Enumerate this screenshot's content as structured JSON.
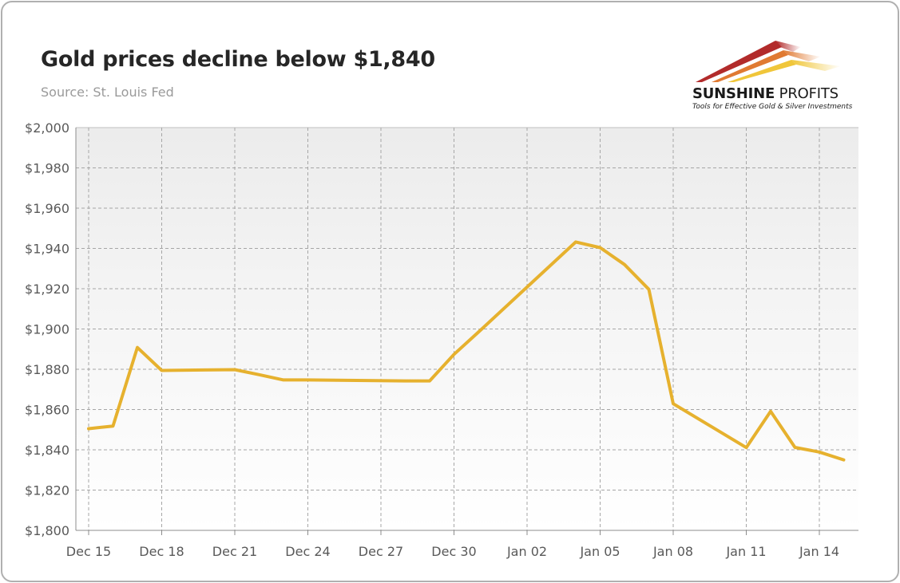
{
  "header": {
    "title": "Gold prices decline below $1,840",
    "subtitle": "Source: St. Louis Fed"
  },
  "logo": {
    "name_part1": "SUNSHINE",
    "name_part2": " PROFITS",
    "tagline": "Tools for Effective Gold & Silver Investments",
    "colors": [
      "#b22b2b",
      "#e07a32",
      "#f0c63a"
    ]
  },
  "chart_data": {
    "type": "line",
    "title": "Gold prices decline below $1,840",
    "subtitle": "Source: St. Louis Fed",
    "xlabel": "",
    "ylabel": "",
    "ylim": [
      1800,
      2000
    ],
    "y_ticks": [
      "$2,000",
      "$1,980",
      "$1,960",
      "$1,940",
      "$1,920",
      "$1,900",
      "$1,880",
      "$1,860",
      "$1,840",
      "$1,820",
      "$1,800"
    ],
    "x_ticks": [
      "Dec 15",
      "Dec 18",
      "Dec 21",
      "Dec 24",
      "Dec 27",
      "Dec 30",
      "Jan 02",
      "Jan 05",
      "Jan 08",
      "Jan 11",
      "Jan 14"
    ],
    "grid": true,
    "line_color": "#e6b12e",
    "series": [
      {
        "x": [
          "Dec 15",
          "Dec 16",
          "Dec 17",
          "Dec 18",
          "Dec 21",
          "Dec 22",
          "Dec 23",
          "Dec 24",
          "Dec 28",
          "Dec 29",
          "Dec 30",
          "Dec 31",
          "Jan 04",
          "Jan 05",
          "Jan 06",
          "Jan 07",
          "Jan 08",
          "Jan 11",
          "Jan 12",
          "Jan 13",
          "Jan 14",
          "Jan 15"
        ],
        "values": [
          1850.5,
          1851.8,
          1890.8,
          1879.4,
          1879.8,
          1877.3,
          1874.7,
          1874.7,
          1874.2,
          1874.2,
          1887.4,
          1898.4,
          1943.2,
          1940.4,
          1932.0,
          1919.7,
          1862.9,
          1841.1,
          1859.1,
          1841.2,
          1838.9,
          1835.0
        ]
      }
    ]
  }
}
